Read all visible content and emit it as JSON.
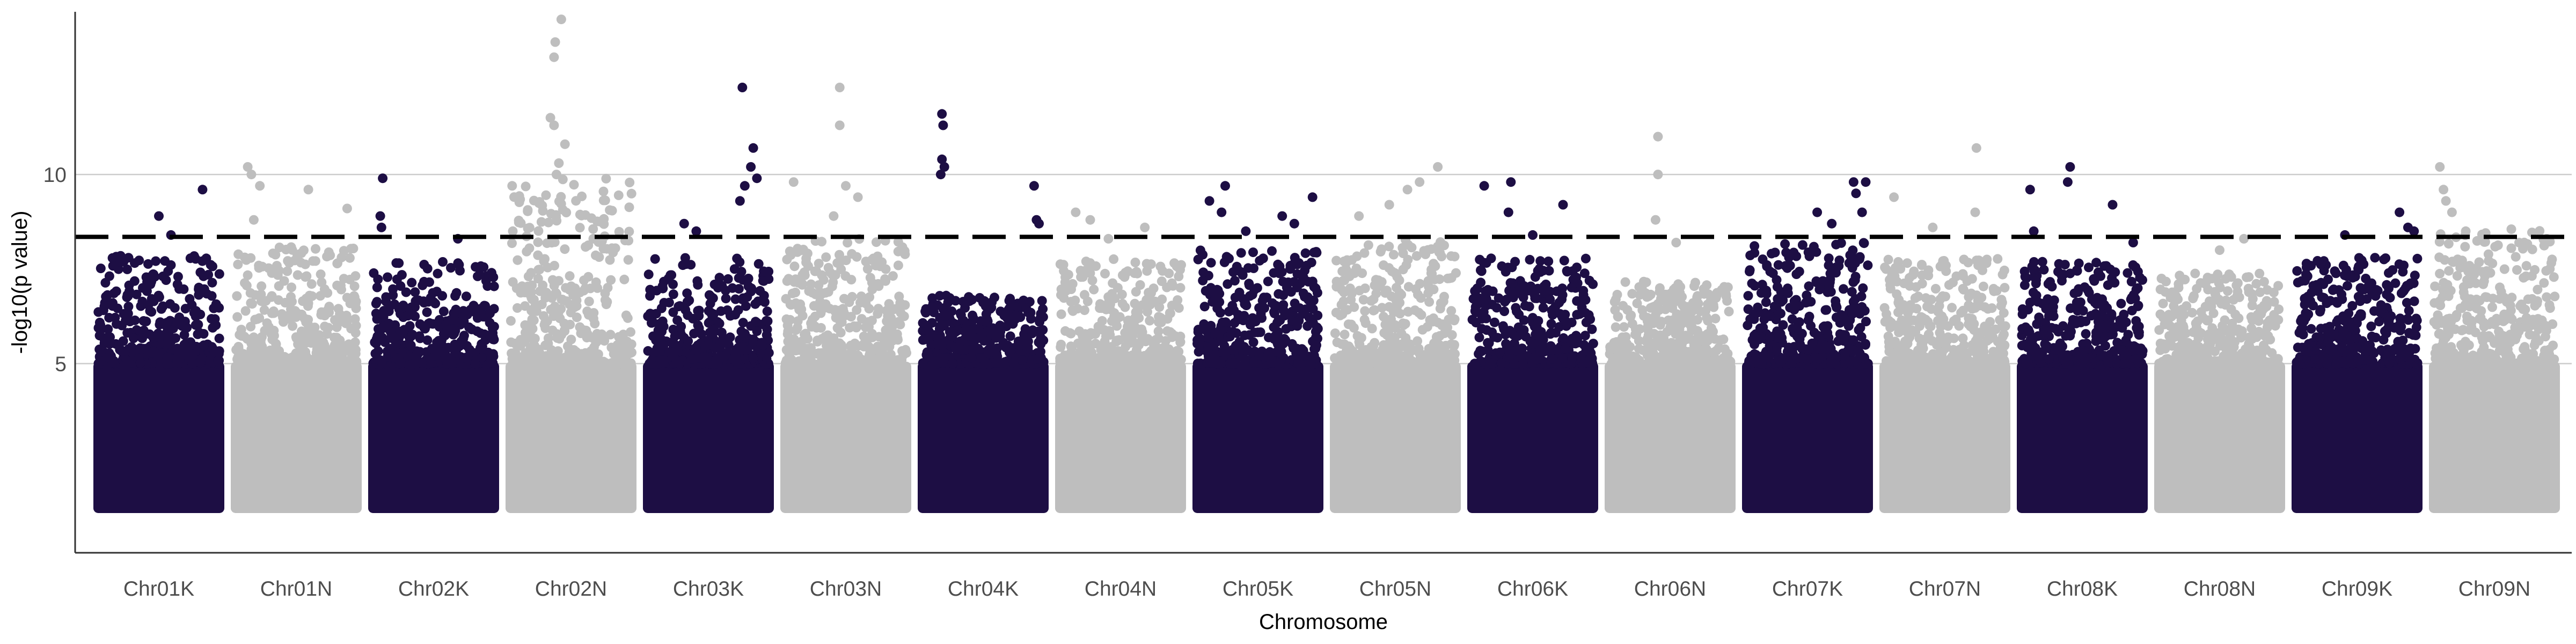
{
  "chart_data": {
    "type": "scatter",
    "subtype": "manhattan",
    "title": "",
    "xlabel": "Chromosome",
    "ylabel": "-log10(p value)",
    "yticks": [
      5,
      10
    ],
    "ylim": [
      0,
      14.3
    ],
    "threshold": 8.35,
    "grid": {
      "horizontal": true,
      "vertical": false
    },
    "legend": "none",
    "colors": {
      "odd": "#1d0e44",
      "even": "#bebebe",
      "threshold": "#000000",
      "grid": "#cccccc"
    },
    "chromosomes": [
      {
        "name": "Chr01K",
        "top": 7.9,
        "max": 9.6,
        "extra": [
          [
            0.5,
            8.9
          ],
          [
            0.86,
            9.6
          ],
          [
            0.6,
            8.4
          ],
          [
            0.25,
            7.8
          ]
        ]
      },
      {
        "name": "Chr01N",
        "top": 8.1,
        "max": 10.2,
        "extra": [
          [
            0.1,
            10.2
          ],
          [
            0.13,
            10.0
          ],
          [
            0.2,
            9.7
          ],
          [
            0.6,
            9.6
          ],
          [
            0.92,
            9.1
          ],
          [
            0.15,
            8.8
          ]
        ]
      },
      {
        "name": "Chr02K",
        "top": 7.7,
        "max": 9.9,
        "extra": [
          [
            0.08,
            9.9
          ],
          [
            0.06,
            8.9
          ],
          [
            0.07,
            8.6
          ],
          [
            0.7,
            8.3
          ]
        ]
      },
      {
        "name": "Chr02N",
        "top": 9.9,
        "max": 14.1,
        "extra": [
          [
            0.42,
            14.1
          ],
          [
            0.37,
            13.5
          ],
          [
            0.36,
            13.1
          ],
          [
            0.33,
            11.5
          ],
          [
            0.36,
            11.3
          ],
          [
            0.45,
            10.8
          ],
          [
            0.4,
            10.3
          ],
          [
            0.38,
            10.0
          ]
        ]
      },
      {
        "name": "Chr03K",
        "top": 7.8,
        "max": 12.3,
        "extra": [
          [
            0.78,
            12.3
          ],
          [
            0.87,
            10.7
          ],
          [
            0.85,
            10.2
          ],
          [
            0.8,
            9.7
          ],
          [
            0.76,
            9.3
          ],
          [
            0.3,
            8.7
          ],
          [
            0.4,
            8.5
          ],
          [
            0.9,
            9.9
          ]
        ]
      },
      {
        "name": "Chr03N",
        "top": 8.3,
        "max": 12.3,
        "extra": [
          [
            0.45,
            12.3
          ],
          [
            0.45,
            11.3
          ],
          [
            0.5,
            9.7
          ],
          [
            0.07,
            9.8
          ],
          [
            0.6,
            9.4
          ],
          [
            0.4,
            8.9
          ]
        ]
      },
      {
        "name": "Chr04K",
        "top": 6.8,
        "max": 11.6,
        "extra": [
          [
            0.16,
            11.6
          ],
          [
            0.17,
            11.3
          ],
          [
            0.16,
            10.4
          ],
          [
            0.18,
            10.2
          ],
          [
            0.15,
            10.0
          ],
          [
            0.92,
            9.7
          ],
          [
            0.94,
            8.8
          ],
          [
            0.96,
            8.7
          ]
        ]
      },
      {
        "name": "Chr04N",
        "top": 7.8,
        "max": 9.0,
        "extra": [
          [
            0.13,
            9.0
          ],
          [
            0.25,
            8.8
          ],
          [
            0.4,
            8.3
          ],
          [
            0.7,
            8.6
          ]
        ]
      },
      {
        "name": "Chr05K",
        "top": 8.0,
        "max": 9.7,
        "extra": [
          [
            0.23,
            9.7
          ],
          [
            0.1,
            9.3
          ],
          [
            0.2,
            9.0
          ],
          [
            0.95,
            9.4
          ],
          [
            0.7,
            8.9
          ],
          [
            0.8,
            8.7
          ],
          [
            0.4,
            8.5
          ]
        ]
      },
      {
        "name": "Chr05N",
        "top": 8.3,
        "max": 10.2,
        "extra": [
          [
            0.85,
            10.2
          ],
          [
            0.7,
            9.8
          ],
          [
            0.6,
            9.6
          ],
          [
            0.2,
            8.9
          ],
          [
            0.45,
            9.2
          ]
        ]
      },
      {
        "name": "Chr06K",
        "top": 7.8,
        "max": 9.8,
        "extra": [
          [
            0.32,
            9.8
          ],
          [
            0.1,
            9.7
          ],
          [
            0.3,
            9.0
          ],
          [
            0.75,
            9.2
          ],
          [
            0.5,
            8.4
          ]
        ]
      },
      {
        "name": "Chr06N",
        "top": 7.2,
        "max": 11.0,
        "extra": [
          [
            0.4,
            11.0
          ],
          [
            0.4,
            10.0
          ],
          [
            0.38,
            8.8
          ],
          [
            0.55,
            8.2
          ]
        ]
      },
      {
        "name": "Chr07K",
        "top": 8.2,
        "max": 9.8,
        "extra": [
          [
            0.58,
            9.0
          ],
          [
            0.88,
            9.8
          ],
          [
            0.98,
            9.8
          ],
          [
            0.9,
            9.5
          ],
          [
            0.7,
            8.7
          ],
          [
            0.95,
            9.0
          ]
        ]
      },
      {
        "name": "Chr07N",
        "top": 7.8,
        "max": 10.7,
        "extra": [
          [
            0.76,
            10.7
          ],
          [
            0.08,
            9.4
          ],
          [
            0.75,
            9.0
          ],
          [
            0.4,
            8.6
          ]
        ]
      },
      {
        "name": "Chr08K",
        "top": 7.7,
        "max": 10.2,
        "extra": [
          [
            0.07,
            9.6
          ],
          [
            0.4,
            10.2
          ],
          [
            0.38,
            9.8
          ],
          [
            0.75,
            9.2
          ],
          [
            0.1,
            8.5
          ],
          [
            0.92,
            8.2
          ]
        ]
      },
      {
        "name": "Chr08N",
        "top": 7.4,
        "max": 8.3,
        "extra": [
          [
            0.7,
            8.3
          ],
          [
            0.5,
            8.0
          ]
        ]
      },
      {
        "name": "Chr09K",
        "top": 7.8,
        "max": 9.0,
        "extra": [
          [
            0.85,
            9.0
          ],
          [
            0.92,
            8.6
          ],
          [
            0.4,
            8.4
          ],
          [
            0.97,
            8.5
          ]
        ]
      },
      {
        "name": "Chr09N",
        "top": 8.6,
        "max": 10.2,
        "extra": [
          [
            0.05,
            10.2
          ],
          [
            0.08,
            9.6
          ],
          [
            0.1,
            9.3
          ],
          [
            0.15,
            9.0
          ]
        ]
      }
    ]
  }
}
